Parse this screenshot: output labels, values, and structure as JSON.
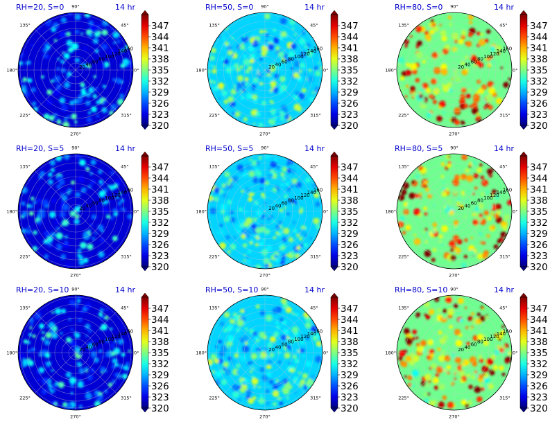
{
  "chart_data": [
    {
      "type": "heatmap",
      "projection": "polar",
      "title": "RH=20, S=0",
      "time_label": "14 hr",
      "RH": 20,
      "S": 0,
      "mean_value": 322.5,
      "spot_density": 0.55,
      "spot_strength": 0.35,
      "angle_ticks": [
        "90°",
        "45°",
        "0°",
        "315°",
        "270°",
        "225°",
        "180°",
        "135°"
      ],
      "radial_ticks": [
        "20",
        "40",
        "60",
        "80",
        "100",
        "120",
        "140",
        "160"
      ],
      "colorbar": {
        "min": 320,
        "max": 350,
        "ticks": [
          "347",
          "344",
          "341",
          "338",
          "335",
          "332",
          "329",
          "326",
          "323",
          "320"
        ],
        "extend": "both",
        "cmap": "jet"
      }
    },
    {
      "type": "heatmap",
      "projection": "polar",
      "title": "RH=50, S=0",
      "time_label": "14 hr",
      "RH": 50,
      "S": 0,
      "mean_value": 330.0,
      "spot_density": 0.8,
      "spot_strength": 0.4,
      "angle_ticks": [
        "90°",
        "45°",
        "0°",
        "315°",
        "270°",
        "225°",
        "180°",
        "135°"
      ],
      "radial_ticks": [
        "20",
        "40",
        "60",
        "80",
        "100",
        "120",
        "140",
        "160"
      ],
      "colorbar": {
        "min": 320,
        "max": 350,
        "ticks": [
          "347",
          "344",
          "341",
          "338",
          "335",
          "332",
          "329",
          "326",
          "323",
          "320"
        ],
        "extend": "both",
        "cmap": "jet"
      }
    },
    {
      "type": "heatmap",
      "projection": "polar",
      "title": "RH=80, S=0",
      "time_label": "14 hr",
      "RH": 80,
      "S": 0,
      "mean_value": 334.5,
      "spot_density": 0.7,
      "spot_strength": 0.55,
      "angle_ticks": [
        "90°",
        "45°",
        "0°",
        "315°",
        "270°",
        "225°",
        "180°",
        "135°"
      ],
      "radial_ticks": [
        "20",
        "40",
        "60",
        "80",
        "100",
        "120",
        "140",
        "160"
      ],
      "colorbar": {
        "min": 320,
        "max": 350,
        "ticks": [
          "347",
          "344",
          "341",
          "338",
          "335",
          "332",
          "329",
          "326",
          "323",
          "320"
        ],
        "extend": "both",
        "cmap": "jet"
      }
    },
    {
      "type": "heatmap",
      "projection": "polar",
      "title": "RH=20, S=5",
      "time_label": "14 hr",
      "RH": 20,
      "S": 5,
      "mean_value": 322.5,
      "spot_density": 0.55,
      "spot_strength": 0.35,
      "angle_ticks": [
        "90°",
        "45°",
        "0°",
        "315°",
        "270°",
        "225°",
        "180°",
        "135°"
      ],
      "radial_ticks": [
        "20",
        "40",
        "60",
        "80",
        "100",
        "120",
        "140",
        "160"
      ],
      "colorbar": {
        "min": 320,
        "max": 350,
        "ticks": [
          "347",
          "344",
          "341",
          "338",
          "335",
          "332",
          "329",
          "326",
          "323",
          "320"
        ],
        "extend": "both",
        "cmap": "jet"
      }
    },
    {
      "type": "heatmap",
      "projection": "polar",
      "title": "RH=50, S=5",
      "time_label": "14 hr",
      "RH": 50,
      "S": 5,
      "mean_value": 330.0,
      "spot_density": 0.8,
      "spot_strength": 0.4,
      "angle_ticks": [
        "90°",
        "45°",
        "0°",
        "315°",
        "270°",
        "225°",
        "180°",
        "135°"
      ],
      "radial_ticks": [
        "20",
        "40",
        "60",
        "80",
        "100",
        "120",
        "140",
        "160"
      ],
      "colorbar": {
        "min": 320,
        "max": 350,
        "ticks": [
          "347",
          "344",
          "341",
          "338",
          "335",
          "332",
          "329",
          "326",
          "323",
          "320"
        ],
        "extend": "both",
        "cmap": "jet"
      }
    },
    {
      "type": "heatmap",
      "projection": "polar",
      "title": "RH=80, S=5",
      "time_label": "14 hr",
      "RH": 80,
      "S": 5,
      "mean_value": 334.5,
      "spot_density": 0.7,
      "spot_strength": 0.55,
      "angle_ticks": [
        "90°",
        "45°",
        "0°",
        "315°",
        "270°",
        "225°",
        "180°",
        "135°"
      ],
      "radial_ticks": [
        "20",
        "40",
        "60",
        "80",
        "100",
        "120",
        "140",
        "160"
      ],
      "colorbar": {
        "min": 320,
        "max": 350,
        "ticks": [
          "347",
          "344",
          "341",
          "338",
          "335",
          "332",
          "329",
          "326",
          "323",
          "320"
        ],
        "extend": "both",
        "cmap": "jet"
      }
    },
    {
      "type": "heatmap",
      "projection": "polar",
      "title": "RH=20, S=10",
      "time_label": "14 hr",
      "RH": 20,
      "S": 10,
      "mean_value": 322.5,
      "spot_density": 0.6,
      "spot_strength": 0.35,
      "angle_ticks": [
        "90°",
        "45°",
        "0°",
        "315°",
        "270°",
        "225°",
        "180°",
        "135°"
      ],
      "radial_ticks": [
        "20",
        "40",
        "60",
        "80",
        "100",
        "120",
        "140",
        "160"
      ],
      "colorbar": {
        "min": 320,
        "max": 350,
        "ticks": [
          "347",
          "344",
          "341",
          "338",
          "335",
          "332",
          "329",
          "326",
          "323",
          "320"
        ],
        "extend": "both",
        "cmap": "jet"
      }
    },
    {
      "type": "heatmap",
      "projection": "polar",
      "title": "RH=50, S=10",
      "time_label": "14 hr",
      "RH": 50,
      "S": 10,
      "mean_value": 330.0,
      "spot_density": 0.8,
      "spot_strength": 0.4,
      "angle_ticks": [
        "90°",
        "45°",
        "0°",
        "315°",
        "270°",
        "225°",
        "180°",
        "135°"
      ],
      "radial_ticks": [
        "20",
        "40",
        "60",
        "80",
        "100",
        "120",
        "140",
        "160"
      ],
      "colorbar": {
        "min": 320,
        "max": 350,
        "ticks": [
          "347",
          "344",
          "341",
          "338",
          "335",
          "332",
          "329",
          "326",
          "323",
          "320"
        ],
        "extend": "both",
        "cmap": "jet"
      }
    },
    {
      "type": "heatmap",
      "projection": "polar",
      "title": "RH=80, S=10",
      "time_label": "14 hr",
      "RH": 80,
      "S": 10,
      "mean_value": 334.5,
      "spot_density": 0.75,
      "spot_strength": 0.6,
      "angle_ticks": [
        "90°",
        "45°",
        "0°",
        "315°",
        "270°",
        "225°",
        "180°",
        "135°"
      ],
      "radial_ticks": [
        "20",
        "40",
        "60",
        "80",
        "100",
        "120",
        "140",
        "160"
      ],
      "colorbar": {
        "min": 320,
        "max": 350,
        "ticks": [
          "347",
          "344",
          "341",
          "338",
          "335",
          "332",
          "329",
          "326",
          "323",
          "320"
        ],
        "extend": "both",
        "cmap": "jet"
      }
    }
  ]
}
